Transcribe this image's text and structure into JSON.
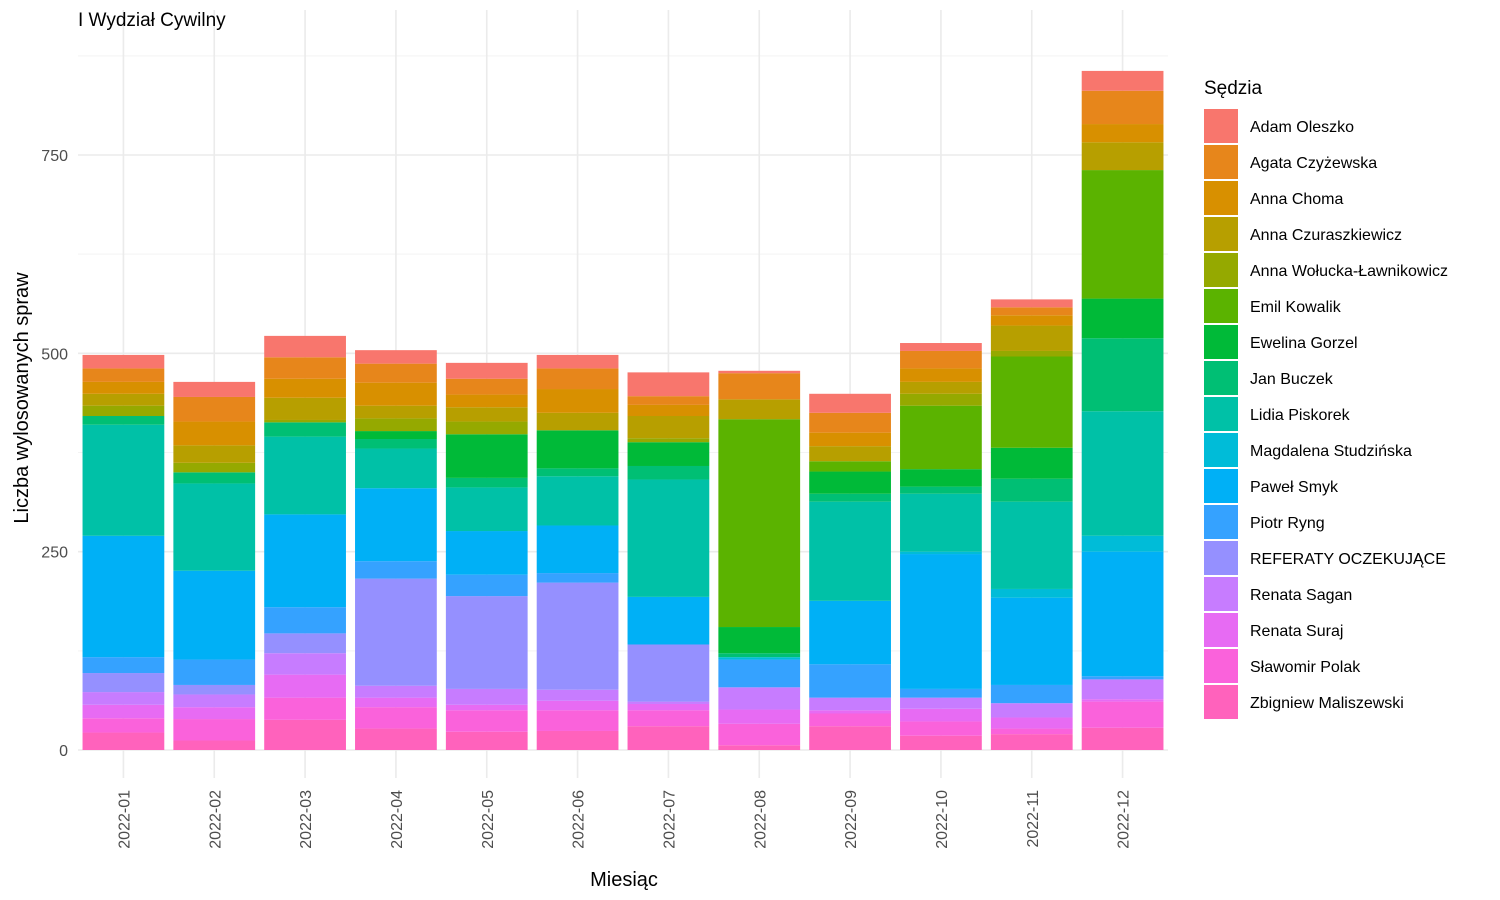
{
  "chart_data": {
    "type": "bar",
    "stacked": true,
    "title": "I Wydział Cywilny",
    "xlabel": "Miesiąc",
    "ylabel": "Liczba wylosowanych spraw",
    "ylim": [
      0,
      900
    ],
    "yticks": [
      0,
      250,
      500,
      750
    ],
    "grid": true,
    "legend_position": "right",
    "legend_title": "Sędzia",
    "categories": [
      "2022-01",
      "2022-02",
      "2022-03",
      "2022-04",
      "2022-05",
      "2022-06",
      "2022-07",
      "2022-08",
      "2022-09",
      "2022-10",
      "2022-11",
      "2022-12"
    ],
    "series": [
      {
        "name": "Adam Oleszko",
        "color": "#F8766D",
        "values": [
          17,
          19,
          27,
          17,
          20,
          17,
          30,
          3,
          24,
          10,
          10,
          25
        ]
      },
      {
        "name": "Agata Czyżewska",
        "color": "#E7861B",
        "values": [
          17,
          31,
          27,
          24,
          20,
          26,
          11,
          33,
          25,
          22,
          10,
          42
        ]
      },
      {
        "name": "Anna Choma",
        "color": "#D89000",
        "values": [
          15,
          30,
          24,
          29,
          16,
          30,
          14,
          0,
          17,
          17,
          13,
          23
        ]
      },
      {
        "name": "Anna Czuraszkiewicz",
        "color": "#B79F00",
        "values": [
          15,
          22,
          28,
          16,
          18,
          22,
          28,
          25,
          19,
          15,
          32,
          35
        ]
      },
      {
        "name": "Anna Wołucka-Ławnikowicz",
        "color": "#95A900",
        "values": [
          13,
          12,
          3,
          16,
          16,
          0,
          5,
          0,
          0,
          15,
          7,
          0
        ]
      },
      {
        "name": "Emil Kowalik",
        "color": "#5BB300",
        "values": [
          0,
          0,
          0,
          0,
          0,
          0,
          0,
          262,
          13,
          80,
          115,
          162
        ]
      },
      {
        "name": "Ewelina Gorzel",
        "color": "#00BA38",
        "values": [
          0,
          0,
          0,
          10,
          55,
          48,
          30,
          33,
          28,
          22,
          39,
          50
        ]
      },
      {
        "name": "Jan Buczek",
        "color": "#00BF74",
        "values": [
          11,
          14,
          18,
          12,
          12,
          10,
          17,
          5,
          10,
          9,
          29,
          92
        ]
      },
      {
        "name": "Lidia Piskorek",
        "color": "#00C1A7",
        "values": [
          140,
          110,
          98,
          50,
          55,
          62,
          148,
          0,
          125,
          73,
          110,
          157
        ]
      },
      {
        "name": "Magdalena Studzińska",
        "color": "#00BCD8",
        "values": [
          0,
          0,
          0,
          0,
          0,
          0,
          0,
          3,
          0,
          3,
          11,
          20
        ]
      },
      {
        "name": "Paweł Smyk",
        "color": "#00B0F6",
        "values": [
          153,
          112,
          117,
          92,
          55,
          60,
          60,
          0,
          80,
          170,
          110,
          157
        ]
      },
      {
        "name": "Piotr Ryng",
        "color": "#35A2FF",
        "values": [
          20,
          32,
          33,
          22,
          27,
          12,
          0,
          35,
          42,
          11,
          23,
          4
        ]
      },
      {
        "name": "REFERATY OCZEKUJĄCE",
        "color": "#9590FF",
        "values": [
          24,
          12,
          25,
          135,
          117,
          135,
          72,
          0,
          0,
          0,
          0,
          0
        ]
      },
      {
        "name": "Renata Sagan",
        "color": "#C77CFF",
        "values": [
          16,
          16,
          27,
          15,
          20,
          14,
          3,
          28,
          16,
          14,
          18,
          25
        ]
      },
      {
        "name": "Renata Suraj",
        "color": "#E76BF3",
        "values": [
          17,
          15,
          29,
          12,
          7,
          12,
          8,
          18,
          4,
          16,
          14,
          3
        ]
      },
      {
        "name": "Sławomir Polak",
        "color": "#FA62DB",
        "values": [
          18,
          27,
          28,
          27,
          27,
          26,
          20,
          27,
          16,
          18,
          7,
          33
        ]
      },
      {
        "name": "Zbigniew Maliszewski",
        "color": "#FF62BC",
        "values": [
          22,
          12,
          38,
          27,
          23,
          24,
          30,
          6,
          30,
          18,
          20,
          28
        ]
      }
    ]
  }
}
